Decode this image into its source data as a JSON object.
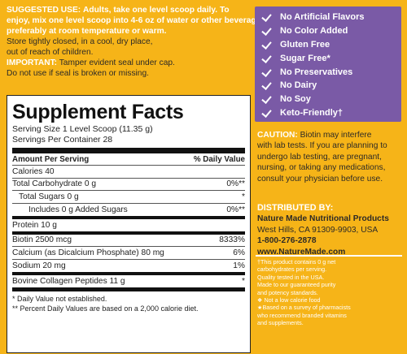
{
  "top": {
    "suggested_label": "SUGGESTED USE:",
    "suggested_lines": [
      "Adults, take one level scoop daily. To",
      "enjoy, mix one level scoop into 4-6 oz of water or other beverages,",
      "preferably at room temperature or warm."
    ],
    "storage_lines": [
      "Store tightly closed, in a cool, dry place,",
      "out of reach of children."
    ],
    "important_label": "IMPORTANT:",
    "important_text": "Tamper evident seal under cap.",
    "seal_text": "Do not use if seal is broken or missing."
  },
  "facts": {
    "title": "Supplement Facts",
    "serving_size": "Serving Size 1 Level Scoop (11.35 g)",
    "servings_per_container": "Servings Per Container 28",
    "header_left": "Amount Per Serving",
    "header_right": "% Daily Value",
    "rows": [
      {
        "name": "Calories  40",
        "dv": ""
      },
      {
        "name": "Total Carbohydrate  0 g",
        "dv": "0%**"
      },
      {
        "name": "Total Sugars  0 g",
        "dv": "*"
      },
      {
        "name": "Includes 0 g Added Sugars",
        "dv": "0%**"
      },
      {
        "name": "Protein  10 g",
        "dv": ""
      },
      {
        "name": "Biotin  2500 mcg",
        "dv": "8333%"
      },
      {
        "name": "Calcium (as Dicalcium Phosphate)  80 mg",
        "dv": "6%"
      },
      {
        "name": "Sodium  20 mg",
        "dv": "1%"
      },
      {
        "name": "Bovine Collagen Peptides  11 g",
        "dv": "*"
      }
    ],
    "footnote1": "* Daily Value not established.",
    "footnote2": "** Percent Daily Values are based on a 2,000 calorie diet."
  },
  "claims": [
    "No Artificial Flavors",
    "No Color Added",
    "Gluten Free",
    "Sugar Free*",
    "No Preservatives",
    "No Dairy",
    "No Soy",
    "Keto-Friendly†"
  ],
  "caution": {
    "label": "CAUTION:",
    "first_line": "Biotin may interfere",
    "lines": [
      "with lab tests. If you are planning to",
      "undergo lab testing, are pregnant,",
      "nursing, or taking any medications,",
      "consult your physician before use."
    ]
  },
  "distributor": {
    "label": "DISTRIBUTED BY:",
    "name": "Nature Made Nutritional Products",
    "address": "West Hills, CA 91309-9903, USA",
    "phone": "1-800-276-2878",
    "website": "www.NatureMade.com"
  },
  "notes": [
    "†This product contains 0 g net",
    "carbohydrates per serving.",
    "Quality tested in the USA.",
    "Made to our guaranteed purity",
    "and potency standards.",
    "❖ Not a low calorie food",
    "★Based on a survey of pharmacists",
    "who recommend branded vitamins",
    "and supplements."
  ],
  "colors": {
    "background": "#F6B418",
    "purple": "#7a5aa6",
    "highlight": "#ffffff"
  }
}
